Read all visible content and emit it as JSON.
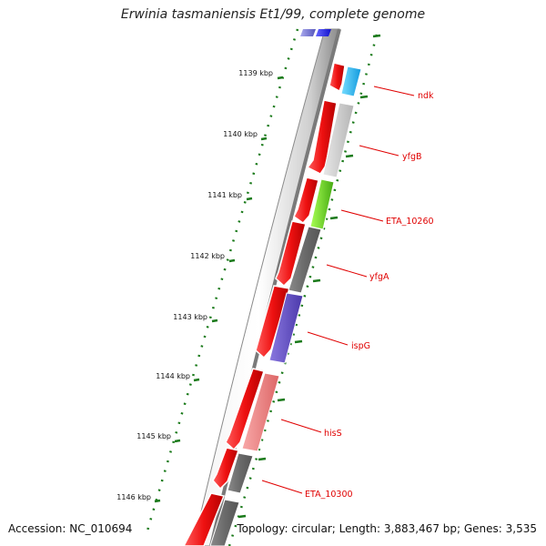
{
  "map": {
    "title": "Erwinia tasmaniensis Et1/99, complete genome",
    "accession": "Accession: NC_010694",
    "summary": "Topology: circular; Length: 3,883,467 bp; Genes: 3,535"
  },
  "ticks": [
    "1139 kbp",
    "1140 kbp",
    "1141 kbp",
    "1142 kbp",
    "1143 kbp",
    "1144 kbp",
    "1145 kbp",
    "1146 kbp"
  ],
  "gene_labels": [
    "ndk",
    "yfgB",
    "ETA_10260",
    "yfgA",
    "ispG",
    "hisS",
    "ETA_10300"
  ],
  "colors": {
    "backbone": "#8a8a8a",
    "forward_cds": "#ee1111",
    "tick_marks": "#1a7a1a",
    "label_text": "#e00000",
    "feature_colors": [
      "#2020e0",
      "#22bbee",
      "#c0c0c0",
      "#66cc22",
      "#6a6a6a",
      "#6a55cc",
      "#ee8888"
    ]
  }
}
